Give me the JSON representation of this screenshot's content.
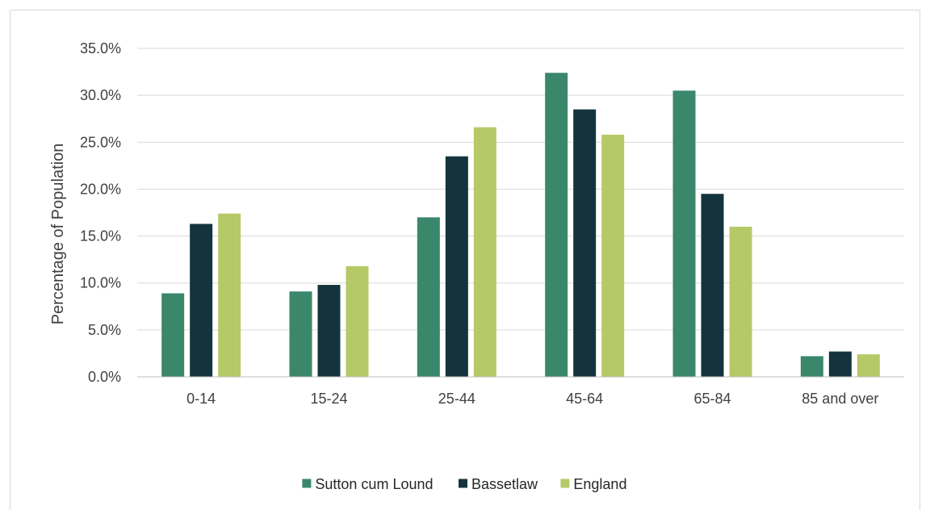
{
  "chart_data": {
    "type": "bar",
    "title": "",
    "xlabel": "",
    "ylabel": "Percentage of Population",
    "ylim": [
      0,
      35
    ],
    "ytick_step": 5,
    "ytick_labels": [
      "0.0%",
      "5.0%",
      "10.0%",
      "15.0%",
      "20.0%",
      "25.0%",
      "30.0%",
      "35.0%"
    ],
    "grid": true,
    "legend_position": "bottom",
    "categories": [
      "0-14",
      "15-24",
      "25-44",
      "45-64",
      "65-84",
      "85 and over"
    ],
    "series": [
      {
        "name": "Sutton cum Lound",
        "color": "#3a876b",
        "values": [
          8.9,
          9.1,
          17.0,
          32.4,
          30.5,
          2.2
        ]
      },
      {
        "name": "Bassetlaw",
        "color": "#14343d",
        "values": [
          16.3,
          9.8,
          23.5,
          28.5,
          19.5,
          2.7
        ]
      },
      {
        "name": "England",
        "color": "#b5c966",
        "values": [
          17.4,
          11.8,
          26.6,
          25.8,
          16.0,
          2.4
        ]
      }
    ]
  }
}
